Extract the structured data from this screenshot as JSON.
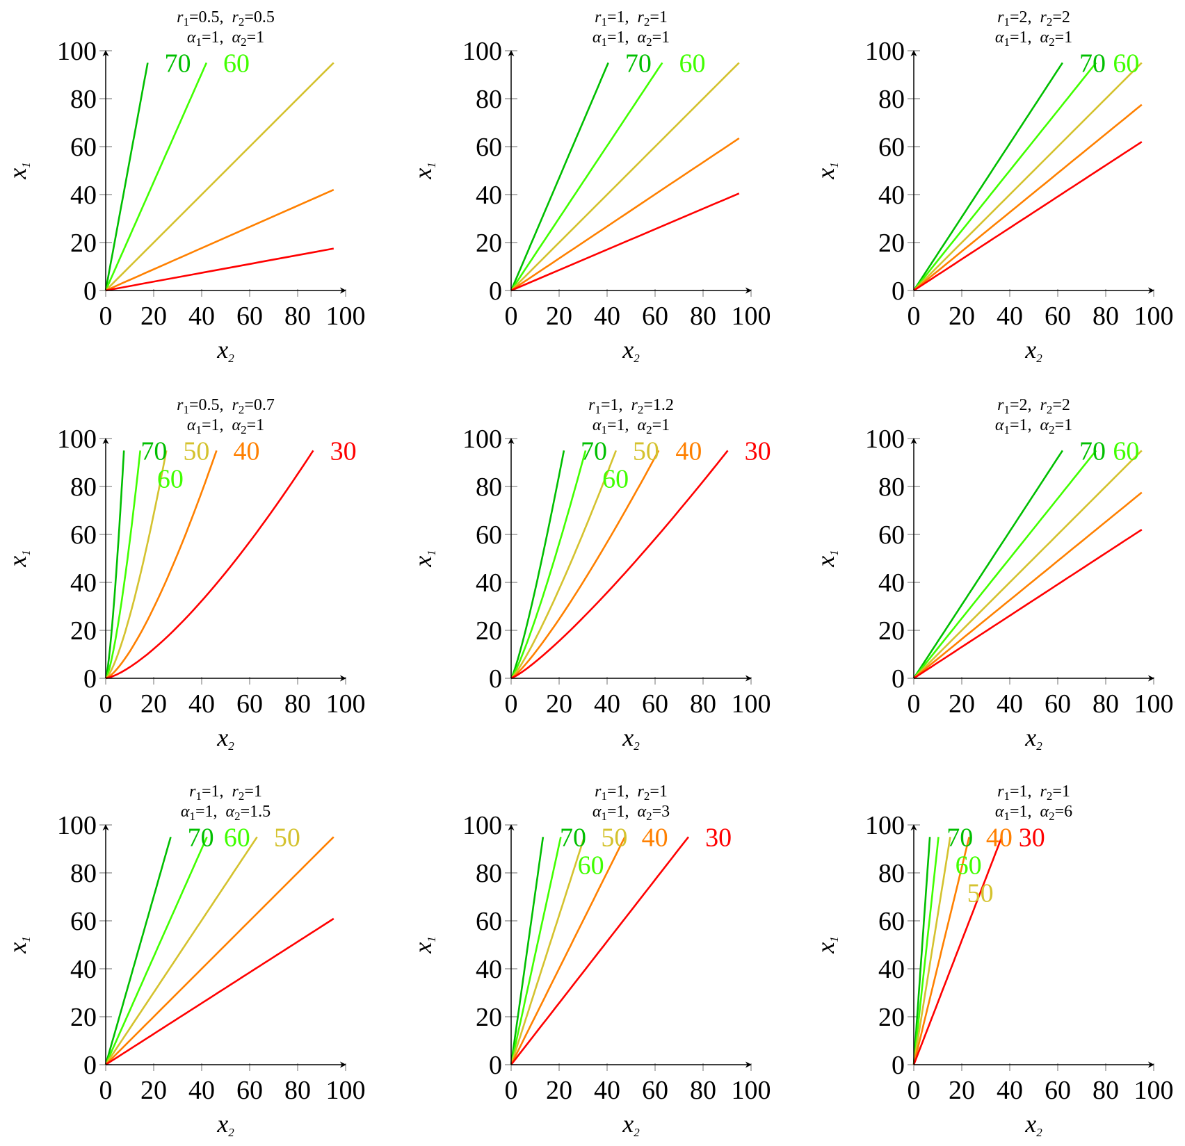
{
  "colors": {
    "70": "#00bf00",
    "60": "#40ff00",
    "50": "#d4c22e",
    "40": "#ff8000",
    "30": "#ff0000"
  },
  "chart_data": [
    {
      "type": "line",
      "title": [
        [
          {
            "sym": "r",
            "sub": "1",
            "val": "0.5"
          },
          {
            "sym": "r",
            "sub": "2",
            "val": "0.5"
          }
        ],
        [
          {
            "sym": "α",
            "sub": "1",
            "val": "1"
          },
          {
            "sym": "α",
            "sub": "2",
            "val": "1"
          }
        ]
      ],
      "xlabel": {
        "sym": "x",
        "sub": "2"
      },
      "ylabel": {
        "sym": "x",
        "sub": "1"
      },
      "xlim": [
        0,
        100
      ],
      "ylim": [
        0,
        100
      ],
      "xticks": [
        "0",
        "20",
        "40",
        "60",
        "80",
        "100"
      ],
      "yticks": [
        "0",
        "20",
        "40",
        "60",
        "80",
        "100"
      ],
      "series": [
        {
          "level": 70,
          "label": "70",
          "end": [
            17.5,
            95
          ],
          "exponent": 1
        },
        {
          "level": 60,
          "label": "60",
          "end": [
            42,
            95
          ],
          "exponent": 1
        },
        {
          "level": 50,
          "label": null,
          "end": [
            95,
            95
          ],
          "exponent": 1
        },
        {
          "level": 40,
          "label": null,
          "end": [
            95,
            42
          ],
          "exponent": 1
        },
        {
          "level": 30,
          "label": null,
          "end": [
            95,
            17.5
          ],
          "exponent": 1
        }
      ]
    },
    {
      "type": "line",
      "title": [
        [
          {
            "sym": "r",
            "sub": "1",
            "val": "1"
          },
          {
            "sym": "r",
            "sub": "2",
            "val": "1"
          }
        ],
        [
          {
            "sym": "α",
            "sub": "1",
            "val": "1"
          },
          {
            "sym": "α",
            "sub": "2",
            "val": "1"
          }
        ]
      ],
      "xlabel": {
        "sym": "x",
        "sub": "2"
      },
      "ylabel": {
        "sym": "x",
        "sub": "1"
      },
      "xlim": [
        0,
        100
      ],
      "ylim": [
        0,
        100
      ],
      "xticks": [
        "0",
        "20",
        "40",
        "60",
        "80",
        "100"
      ],
      "yticks": [
        "0",
        "20",
        "40",
        "60",
        "80",
        "100"
      ],
      "series": [
        {
          "level": 70,
          "label": "70",
          "end": [
            40.5,
            95
          ],
          "exponent": 1
        },
        {
          "level": 60,
          "label": "60",
          "end": [
            63,
            95
          ],
          "exponent": 1
        },
        {
          "level": 50,
          "label": null,
          "end": [
            95,
            95
          ],
          "exponent": 1
        },
        {
          "level": 40,
          "label": null,
          "end": [
            95,
            63.5
          ],
          "exponent": 1
        },
        {
          "level": 30,
          "label": null,
          "end": [
            95,
            40.5
          ],
          "exponent": 1
        }
      ]
    },
    {
      "type": "line",
      "title": [
        [
          {
            "sym": "r",
            "sub": "1",
            "val": "2"
          },
          {
            "sym": "r",
            "sub": "2",
            "val": "2"
          }
        ],
        [
          {
            "sym": "α",
            "sub": "1",
            "val": "1"
          },
          {
            "sym": "α",
            "sub": "2",
            "val": "1"
          }
        ]
      ],
      "xlabel": {
        "sym": "x",
        "sub": "2"
      },
      "ylabel": {
        "sym": "x",
        "sub": "1"
      },
      "xlim": [
        0,
        100
      ],
      "ylim": [
        0,
        100
      ],
      "xticks": [
        "0",
        "20",
        "40",
        "60",
        "80",
        "100"
      ],
      "yticks": [
        "0",
        "20",
        "40",
        "60",
        "80",
        "100"
      ],
      "series": [
        {
          "level": 70,
          "label": "70",
          "end": [
            62,
            95
          ],
          "exponent": 1
        },
        {
          "level": 60,
          "label": "60",
          "end": [
            76,
            95
          ],
          "exponent": 1
        },
        {
          "level": 50,
          "label": null,
          "end": [
            95,
            95
          ],
          "exponent": 1
        },
        {
          "level": 40,
          "label": null,
          "end": [
            95,
            77.5
          ],
          "exponent": 1
        },
        {
          "level": 30,
          "label": null,
          "end": [
            95,
            62
          ],
          "exponent": 1
        }
      ]
    },
    {
      "type": "line",
      "title": [
        [
          {
            "sym": "r",
            "sub": "1",
            "val": "0.5"
          },
          {
            "sym": "r",
            "sub": "2",
            "val": "0.7"
          }
        ],
        [
          {
            "sym": "α",
            "sub": "1",
            "val": "1"
          },
          {
            "sym": "α",
            "sub": "2",
            "val": "1"
          }
        ]
      ],
      "xlabel": {
        "sym": "x",
        "sub": "2"
      },
      "ylabel": {
        "sym": "x",
        "sub": "1"
      },
      "xlim": [
        0,
        100
      ],
      "ylim": [
        0,
        100
      ],
      "xticks": [
        "0",
        "20",
        "40",
        "60",
        "80",
        "100"
      ],
      "yticks": [
        "0",
        "20",
        "40",
        "60",
        "80",
        "100"
      ],
      "series": [
        {
          "level": 70,
          "label": "70",
          "end": [
            7.6,
            95
          ],
          "exponent": 1.4
        },
        {
          "level": 60,
          "label": "60",
          "end": [
            14.4,
            95
          ],
          "exponent": 1.4
        },
        {
          "level": 50,
          "label": "50",
          "end": [
            25.3,
            95
          ],
          "exponent": 1.4
        },
        {
          "level": 40,
          "label": "40",
          "end": [
            46.2,
            95
          ],
          "exponent": 1.4
        },
        {
          "level": 30,
          "label": "30",
          "end": [
            86.5,
            95
          ],
          "exponent": 1.4
        }
      ]
    },
    {
      "type": "line",
      "title": [
        [
          {
            "sym": "r",
            "sub": "1",
            "val": "1"
          },
          {
            "sym": "r",
            "sub": "2",
            "val": "1.2"
          }
        ],
        [
          {
            "sym": "α",
            "sub": "1",
            "val": "1"
          },
          {
            "sym": "α",
            "sub": "2",
            "val": "1"
          }
        ]
      ],
      "xlabel": {
        "sym": "x",
        "sub": "2"
      },
      "ylabel": {
        "sym": "x",
        "sub": "1"
      },
      "xlim": [
        0,
        100
      ],
      "ylim": [
        0,
        100
      ],
      "xticks": [
        "0",
        "20",
        "40",
        "60",
        "80",
        "100"
      ],
      "yticks": [
        "0",
        "20",
        "40",
        "60",
        "80",
        "100"
      ],
      "series": [
        {
          "level": 70,
          "label": "70",
          "end": [
            22,
            95
          ],
          "exponent": 1.2
        },
        {
          "level": 60,
          "label": "60",
          "end": [
            31,
            95
          ],
          "exponent": 1.2
        },
        {
          "level": 50,
          "label": "50",
          "end": [
            43.7,
            95
          ],
          "exponent": 1.2
        },
        {
          "level": 40,
          "label": "40",
          "end": [
            61.5,
            95
          ],
          "exponent": 1.2
        },
        {
          "level": 30,
          "label": "30",
          "end": [
            90.3,
            95
          ],
          "exponent": 1.2
        }
      ]
    },
    {
      "type": "line",
      "title": [
        [
          {
            "sym": "r",
            "sub": "1",
            "val": "2"
          },
          {
            "sym": "r",
            "sub": "2",
            "val": "2"
          }
        ],
        [
          {
            "sym": "α",
            "sub": "1",
            "val": "1"
          },
          {
            "sym": "α",
            "sub": "2",
            "val": "1"
          }
        ]
      ],
      "xlabel": {
        "sym": "x",
        "sub": "2"
      },
      "ylabel": {
        "sym": "x",
        "sub": "1"
      },
      "xlim": [
        0,
        100
      ],
      "ylim": [
        0,
        100
      ],
      "xticks": [
        "0",
        "20",
        "40",
        "60",
        "80",
        "100"
      ],
      "yticks": [
        "0",
        "20",
        "40",
        "60",
        "80",
        "100"
      ],
      "series": [
        {
          "level": 70,
          "label": "70",
          "end": [
            62,
            95
          ],
          "exponent": 1
        },
        {
          "level": 60,
          "label": "60",
          "end": [
            76,
            95
          ],
          "exponent": 1
        },
        {
          "level": 50,
          "label": null,
          "end": [
            95,
            95
          ],
          "exponent": 1
        },
        {
          "level": 40,
          "label": null,
          "end": [
            95,
            77.5
          ],
          "exponent": 1
        },
        {
          "level": 30,
          "label": null,
          "end": [
            95,
            62
          ],
          "exponent": 1
        }
      ]
    },
    {
      "type": "line",
      "title": [
        [
          {
            "sym": "r",
            "sub": "1",
            "val": "1"
          },
          {
            "sym": "r",
            "sub": "2",
            "val": "1"
          }
        ],
        [
          {
            "sym": "α",
            "sub": "1",
            "val": "1"
          },
          {
            "sym": "α",
            "sub": "2",
            "val": "1.5"
          }
        ]
      ],
      "xlabel": {
        "sym": "x",
        "sub": "2"
      },
      "ylabel": {
        "sym": "x",
        "sub": "1"
      },
      "xlim": [
        0,
        100
      ],
      "ylim": [
        0,
        100
      ],
      "xticks": [
        "0",
        "20",
        "40",
        "60",
        "80",
        "100"
      ],
      "yticks": [
        "0",
        "20",
        "40",
        "60",
        "80",
        "100"
      ],
      "series": [
        {
          "level": 70,
          "label": "70",
          "end": [
            27.1,
            95
          ],
          "exponent": 1
        },
        {
          "level": 60,
          "label": "60",
          "end": [
            42.2,
            95
          ],
          "exponent": 1
        },
        {
          "level": 50,
          "label": "50",
          "end": [
            63.1,
            95
          ],
          "exponent": 1
        },
        {
          "level": 40,
          "label": null,
          "end": [
            95,
            95
          ],
          "exponent": 1
        },
        {
          "level": 30,
          "label": null,
          "end": [
            95,
            60.9
          ],
          "exponent": 1
        }
      ]
    },
    {
      "type": "line",
      "title": [
        [
          {
            "sym": "r",
            "sub": "1",
            "val": "1"
          },
          {
            "sym": "r",
            "sub": "2",
            "val": "1"
          }
        ],
        [
          {
            "sym": "α",
            "sub": "1",
            "val": "1"
          },
          {
            "sym": "α",
            "sub": "2",
            "val": "3"
          }
        ]
      ],
      "xlabel": {
        "sym": "x",
        "sub": "2"
      },
      "ylabel": {
        "sym": "x",
        "sub": "1"
      },
      "xlim": [
        0,
        100
      ],
      "ylim": [
        0,
        100
      ],
      "xticks": [
        "0",
        "20",
        "40",
        "60",
        "80",
        "100"
      ],
      "yticks": [
        "0",
        "20",
        "40",
        "60",
        "80",
        "100"
      ],
      "series": [
        {
          "level": 70,
          "label": "70",
          "end": [
            13.3,
            95
          ],
          "exponent": 1
        },
        {
          "level": 60,
          "label": "60",
          "end": [
            20.7,
            95
          ],
          "exponent": 1
        },
        {
          "level": 50,
          "label": "50",
          "end": [
            30.5,
            95
          ],
          "exponent": 1
        },
        {
          "level": 40,
          "label": "40",
          "end": [
            47.4,
            95
          ],
          "exponent": 1
        },
        {
          "level": 30,
          "label": "30",
          "end": [
            73.9,
            95
          ],
          "exponent": 1
        }
      ]
    },
    {
      "type": "line",
      "title": [
        [
          {
            "sym": "r",
            "sub": "1",
            "val": "1"
          },
          {
            "sym": "r",
            "sub": "2",
            "val": "1"
          }
        ],
        [
          {
            "sym": "α",
            "sub": "1",
            "val": "1"
          },
          {
            "sym": "α",
            "sub": "2",
            "val": "6"
          }
        ]
      ],
      "xlabel": {
        "sym": "x",
        "sub": "2"
      },
      "ylabel": {
        "sym": "x",
        "sub": "1"
      },
      "xlim": [
        0,
        100
      ],
      "ylim": [
        0,
        100
      ],
      "xticks": [
        "0",
        "20",
        "40",
        "60",
        "80",
        "100"
      ],
      "yticks": [
        "0",
        "20",
        "40",
        "60",
        "80",
        "100"
      ],
      "series": [
        {
          "level": 70,
          "label": "70",
          "end": [
            6.7,
            95
          ],
          "exponent": 1
        },
        {
          "level": 60,
          "label": "60",
          "end": [
            10.3,
            95
          ],
          "exponent": 1
        },
        {
          "level": 50,
          "label": "50",
          "end": [
            15.2,
            95
          ],
          "exponent": 1
        },
        {
          "level": 40,
          "label": "40",
          "end": [
            23.1,
            95
          ],
          "exponent": 1
        },
        {
          "level": 30,
          "label": "30",
          "end": [
            36.7,
            95
          ],
          "exponent": 1
        }
      ]
    }
  ]
}
